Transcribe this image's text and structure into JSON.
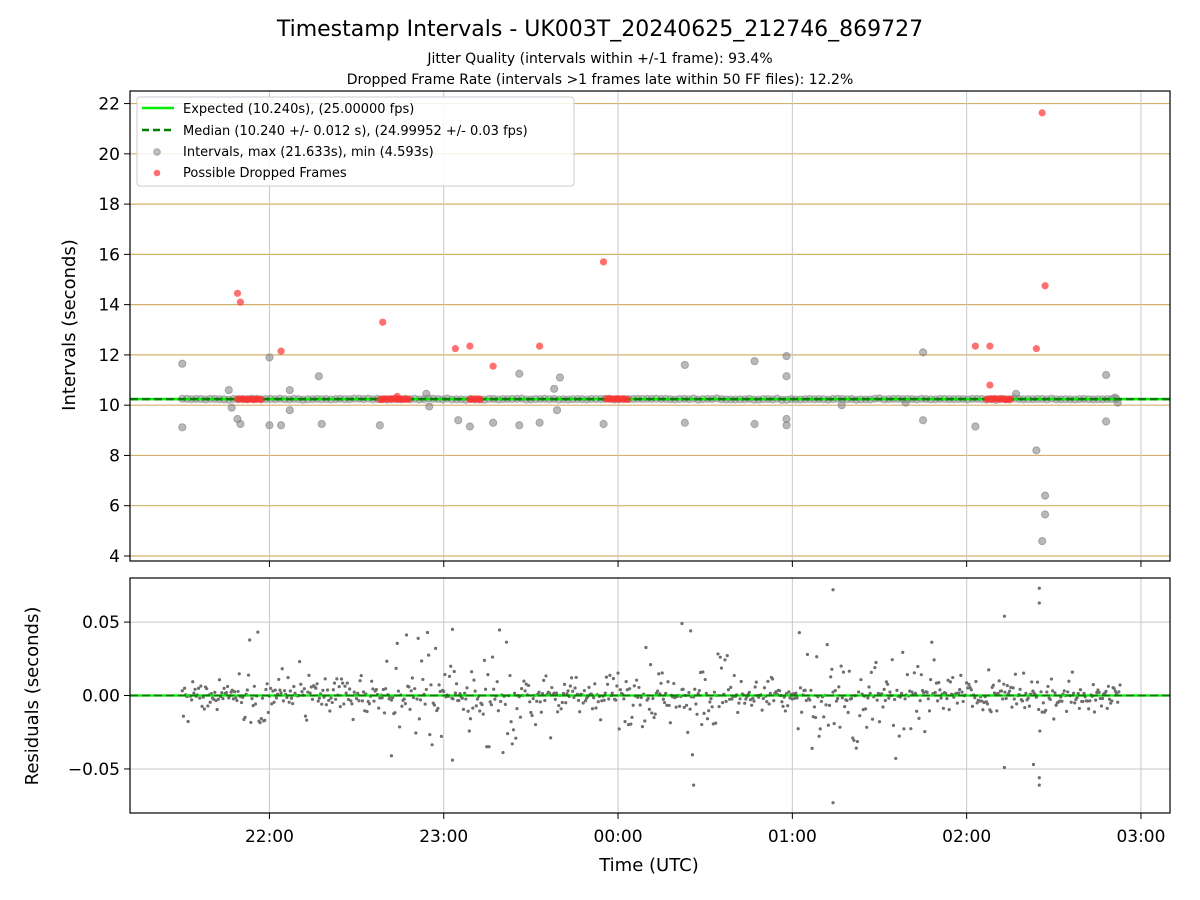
{
  "chart_data": [
    {
      "type": "scatter",
      "title": "Timestamp Intervals - UK003T_20240625_212746_869727",
      "subtitle": [
        "Jitter Quality (intervals within +/-1 frame): 93.4%",
        "Dropped Frame Rate (intervals >1 frames late within 50 FF files): 12.2%"
      ],
      "xlabel": "",
      "ylabel": "Intervals (seconds)",
      "xlim": [
        "21:12",
        "03:10"
      ],
      "ylim": [
        3.8,
        22.5
      ],
      "x_ticks": [
        "22:00",
        "23:00",
        "00:00",
        "01:00",
        "02:00",
        "03:00"
      ],
      "y_ticks": [
        4,
        6,
        8,
        10,
        12,
        14,
        16,
        18,
        20,
        22
      ],
      "grid": true,
      "legend_placement": "top-left",
      "legend": [
        "Expected (10.240s), (25.00000 fps)",
        "Median (10.240 +/- 0.012 s), (24.99952 +/- 0.03 fps)",
        "Intervals, max (21.633s), min (4.593s)",
        "Possible Dropped Frames"
      ],
      "expected_interval": 10.24,
      "median_interval": 10.24,
      "colors": {
        "expected": "#00ee00",
        "median": "#007f00",
        "intervals": "#808080",
        "dropped": "#ff3333",
        "hgrid": "#d4b16a",
        "vgrid": "#c8c8c8"
      },
      "series": [
        {
          "name": "Intervals, max (21.633s), min (4.593s)",
          "points": [
            [
              "21:30",
              11.65
            ],
            [
              "21:30",
              9.12
            ],
            [
              "21:46",
              10.6
            ],
            [
              "21:47",
              9.9
            ],
            [
              "21:49",
              9.45
            ],
            [
              "21:50",
              9.25
            ],
            [
              "22:00",
              11.9
            ],
            [
              "22:00",
              9.2
            ],
            [
              "22:04",
              9.2
            ],
            [
              "22:07",
              10.6
            ],
            [
              "22:07",
              9.8
            ],
            [
              "22:17",
              11.15
            ],
            [
              "22:18",
              9.25
            ],
            [
              "22:38",
              9.2
            ],
            [
              "22:54",
              10.45
            ],
            [
              "22:55",
              9.95
            ],
            [
              "23:05",
              9.4
            ],
            [
              "23:09",
              9.15
            ],
            [
              "23:17",
              9.3
            ],
            [
              "23:26",
              11.25
            ],
            [
              "23:26",
              9.2
            ],
            [
              "23:33",
              9.3
            ],
            [
              "23:38",
              10.65
            ],
            [
              "23:39",
              9.8
            ],
            [
              "23:40",
              11.1
            ],
            [
              "23:55",
              9.25
            ],
            [
              "00:23",
              11.6
            ],
            [
              "00:23",
              9.3
            ],
            [
              "00:47",
              11.75
            ],
            [
              "00:47",
              9.25
            ],
            [
              "00:58",
              11.95
            ],
            [
              "00:58",
              11.15
            ],
            [
              "00:58",
              9.45
            ],
            [
              "00:58",
              9.2
            ],
            [
              "01:17",
              10.0
            ],
            [
              "01:39",
              10.1
            ],
            [
              "01:45",
              12.1
            ],
            [
              "01:45",
              9.4
            ],
            [
              "02:03",
              9.15
            ],
            [
              "02:17",
              10.45
            ],
            [
              "02:24",
              8.2
            ],
            [
              "02:27",
              6.4
            ],
            [
              "02:27",
              5.65
            ],
            [
              "02:26",
              4.59
            ],
            [
              "02:48",
              11.2
            ],
            [
              "02:48",
              9.35
            ],
            [
              "02:51",
              10.3
            ],
            [
              "02:52",
              10.1
            ]
          ],
          "band": {
            "from": "21:30",
            "to": "02:53",
            "value": 10.24
          }
        },
        {
          "name": "Possible Dropped Frames",
          "points": [
            [
              "21:49",
              14.45
            ],
            [
              "21:50",
              14.1
            ],
            [
              "22:04",
              12.15
            ],
            [
              "22:39",
              13.3
            ],
            [
              "23:04",
              12.25
            ],
            [
              "23:09",
              12.35
            ],
            [
              "23:17",
              11.55
            ],
            [
              "23:33",
              12.35
            ],
            [
              "23:55",
              15.7
            ],
            [
              "02:03",
              12.35
            ],
            [
              "02:08",
              12.35
            ],
            [
              "02:08",
              10.8
            ],
            [
              "02:24",
              12.25
            ],
            [
              "02:27",
              14.75
            ],
            [
              "02:26",
              21.63
            ],
            [
              "22:44",
              10.35
            ]
          ],
          "clusters": [
            {
              "from": "21:49",
              "to": "21:58",
              "value": 10.24
            },
            {
              "from": "22:38",
              "to": "22:48",
              "value": 10.24
            },
            {
              "from": "23:09",
              "to": "23:13",
              "value": 10.24
            },
            {
              "from": "23:56",
              "to": "00:04",
              "value": 10.24
            },
            {
              "from": "02:07",
              "to": "02:16",
              "value": 10.24
            }
          ]
        }
      ]
    },
    {
      "type": "scatter",
      "xlabel": "Time (UTC)",
      "ylabel": "Residuals (seconds)",
      "xlim": [
        "21:12",
        "03:10"
      ],
      "ylim": [
        -0.08,
        0.08
      ],
      "x_ticks": [
        "22:00",
        "23:00",
        "00:00",
        "01:00",
        "02:00",
        "03:00"
      ],
      "y_ticks": [
        "0.05",
        "0.00",
        "−0.05"
      ],
      "y_tick_values": [
        0.05,
        0.0,
        -0.05
      ],
      "grid": true,
      "zero_line": 0.0,
      "from": "21:30",
      "to": "02:53",
      "series": [
        {
          "name": "Residuals",
          "notable_points": [
            [
              "00:22",
              0.049
            ],
            [
              "00:25",
              0.044
            ],
            [
              "00:26",
              -0.061
            ],
            [
              "01:14",
              0.072
            ],
            [
              "01:14",
              -0.073
            ],
            [
              "02:13",
              0.054
            ],
            [
              "02:25",
              0.073
            ],
            [
              "02:25",
              0.063
            ],
            [
              "02:25",
              -0.056
            ],
            [
              "02:25",
              -0.061
            ],
            [
              "02:23",
              -0.047
            ],
            [
              "02:13",
              -0.049
            ],
            [
              "23:03",
              0.045
            ],
            [
              "23:03",
              -0.044
            ],
            [
              "22:42",
              -0.041
            ]
          ]
        }
      ]
    }
  ]
}
